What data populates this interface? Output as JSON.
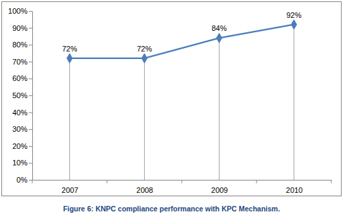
{
  "chart_data": {
    "type": "line",
    "caption": "Figure 6: KNPC compliance performance with KPC Mechanism.",
    "categories": [
      "2007",
      "2008",
      "2009",
      "2010"
    ],
    "values": [
      72,
      72,
      84,
      92
    ],
    "value_labels": [
      "72%",
      "72%",
      "84%",
      "92%"
    ],
    "data_labels": true,
    "color": "#4a7ebb",
    "marker": "diamond",
    "grid": false,
    "ylim": [
      0,
      100
    ],
    "yticks": [
      {
        "value": 0,
        "label": "0%"
      },
      {
        "value": 10,
        "label": "10%"
      },
      {
        "value": 20,
        "label": "20%"
      },
      {
        "value": 30,
        "label": "30%"
      },
      {
        "value": 40,
        "label": "40%"
      },
      {
        "value": 50,
        "label": "50%"
      },
      {
        "value": 60,
        "label": "60%"
      },
      {
        "value": 70,
        "label": "70%"
      },
      {
        "value": 80,
        "label": "80%"
      },
      {
        "value": 90,
        "label": "90%"
      },
      {
        "value": 100,
        "label": "100%"
      }
    ]
  }
}
